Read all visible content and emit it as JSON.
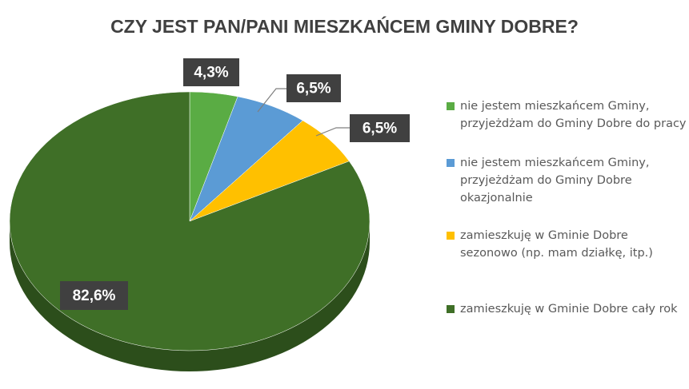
{
  "chart_data": {
    "type": "pie",
    "title": "CZY JEST PAN/PANI MIESZKAŃCEM GMINY DOBRE?",
    "categories": [
      "nie jestem mieszkańcem Gminy, przyjeżdżam do Gminy Dobre do pracy",
      "nie jestem mieszkańcem Gminy, przyjeżdżam do Gminy Dobre okazjonalnie",
      "zamieszkuję w Gminie Dobre sezonowo (np. mam działkę, itp.)",
      "zamieszkuję w Gminie Dobre cały rok"
    ],
    "values": [
      4.3,
      6.5,
      6.5,
      82.6
    ],
    "value_labels": [
      "4,3%",
      "6,5%",
      "6,5%",
      "82,6%"
    ],
    "colors": [
      "#5aac44",
      "#5b9bd5",
      "#ffc000",
      "#3f6f27"
    ]
  }
}
